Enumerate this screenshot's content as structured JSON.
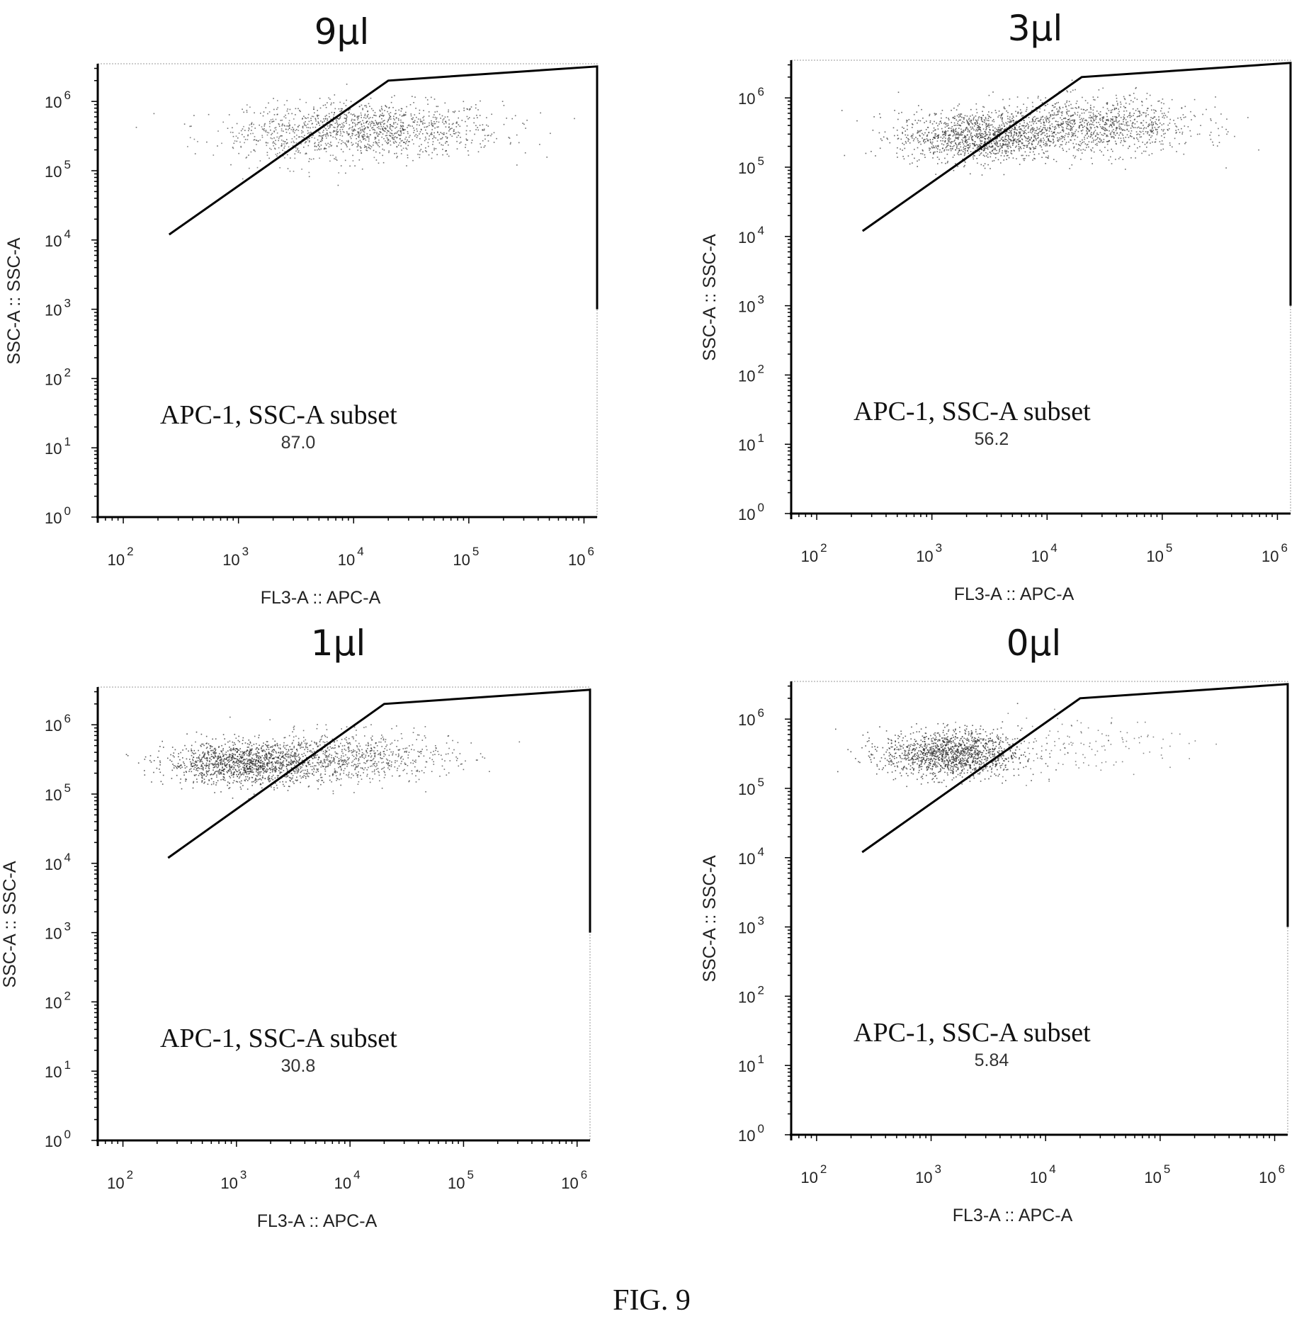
{
  "figure_label": "FIG. 9",
  "chart_data": [
    {
      "type": "scatter",
      "title": "9µl",
      "xlabel": "FL3-A :: APC-A",
      "ylabel": "SSC-A :: SSC-A",
      "x_scale": "log",
      "y_scale": "log",
      "xlim": [
        60,
        1300000
      ],
      "ylim": [
        1,
        3500000
      ],
      "x_tick_values": [
        100,
        1000,
        10000,
        100000,
        1000000
      ],
      "x_tick_labels": [
        [
          "10",
          "2"
        ],
        [
          "10",
          "3"
        ],
        [
          "10",
          "4"
        ],
        [
          "10",
          "5"
        ],
        [
          "10",
          "6"
        ]
      ],
      "y_tick_values": [
        1,
        10,
        100,
        1000,
        10000,
        100000,
        1000000
      ],
      "y_tick_labels": [
        [
          "10",
          "0"
        ],
        [
          "10",
          "1"
        ],
        [
          "10",
          "2"
        ],
        [
          "10",
          "3"
        ],
        [
          "10",
          "4"
        ],
        [
          "10",
          "5"
        ],
        [
          "10",
          "6"
        ]
      ],
      "gate": {
        "name": "APC-1, SSC-A subset",
        "value": "87.0",
        "vertices": [
          [
            250,
            12000
          ],
          [
            20000,
            2000000
          ],
          [
            1300000,
            3200000
          ],
          [
            1300000,
            1000
          ]
        ]
      },
      "clusters": [
        {
          "center": [
            15000,
            400000
          ],
          "spread": [
            0.55,
            0.2
          ],
          "count": 1100,
          "opacity": 0.7
        },
        {
          "center": [
            3000,
            300000
          ],
          "spread": [
            0.35,
            0.2
          ],
          "count": 250,
          "opacity": 0.6
        }
      ]
    },
    {
      "type": "scatter",
      "title": "3µl",
      "xlabel": "FL3-A :: APC-A",
      "ylabel": "SSC-A :: SSC-A",
      "x_scale": "log",
      "y_scale": "log",
      "xlim": [
        60,
        1300000
      ],
      "ylim": [
        1,
        3500000
      ],
      "x_tick_values": [
        100,
        1000,
        10000,
        100000,
        1000000
      ],
      "x_tick_labels": [
        [
          "10",
          "2"
        ],
        [
          "10",
          "3"
        ],
        [
          "10",
          "4"
        ],
        [
          "10",
          "5"
        ],
        [
          "10",
          "6"
        ]
      ],
      "y_tick_values": [
        1,
        10,
        100,
        1000,
        10000,
        100000,
        1000000
      ],
      "y_tick_labels": [
        [
          "10",
          "0"
        ],
        [
          "10",
          "1"
        ],
        [
          "10",
          "2"
        ],
        [
          "10",
          "3"
        ],
        [
          "10",
          "4"
        ],
        [
          "10",
          "5"
        ],
        [
          "10",
          "6"
        ]
      ],
      "gate": {
        "name": "APC-1, SSC-A subset",
        "value": "56.2",
        "vertices": [
          [
            250,
            12000
          ],
          [
            20000,
            2000000
          ],
          [
            1300000,
            3200000
          ],
          [
            1300000,
            1000
          ]
        ]
      },
      "clusters": [
        {
          "center": [
            2500,
            280000
          ],
          "spread": [
            0.35,
            0.18
          ],
          "count": 1200,
          "opacity": 0.75
        },
        {
          "center": [
            25000,
            400000
          ],
          "spread": [
            0.45,
            0.2
          ],
          "count": 1100,
          "opacity": 0.7
        }
      ]
    },
    {
      "type": "scatter",
      "title": "1µl",
      "xlabel": "FL3-A :: APC-A",
      "ylabel": "SSC-A :: SSC-A",
      "x_scale": "log",
      "y_scale": "log",
      "xlim": [
        60,
        1300000
      ],
      "ylim": [
        1,
        3500000
      ],
      "x_tick_values": [
        100,
        1000,
        10000,
        100000,
        1000000
      ],
      "x_tick_labels": [
        [
          "10",
          "2"
        ],
        [
          "10",
          "3"
        ],
        [
          "10",
          "4"
        ],
        [
          "10",
          "5"
        ],
        [
          "10",
          "6"
        ]
      ],
      "y_tick_values": [
        1,
        10,
        100,
        1000,
        10000,
        100000,
        1000000
      ],
      "y_tick_labels": [
        [
          "10",
          "0"
        ],
        [
          "10",
          "1"
        ],
        [
          "10",
          "2"
        ],
        [
          "10",
          "3"
        ],
        [
          "10",
          "4"
        ],
        [
          "10",
          "5"
        ],
        [
          "10",
          "6"
        ]
      ],
      "gate": {
        "name": "APC-1, SSC-A subset",
        "value": "30.8",
        "vertices": [
          [
            250,
            12000
          ],
          [
            20000,
            2000000
          ],
          [
            1300000,
            3200000
          ],
          [
            1300000,
            1000
          ]
        ]
      },
      "clusters": [
        {
          "center": [
            1200,
            280000
          ],
          "spread": [
            0.35,
            0.15
          ],
          "count": 1300,
          "opacity": 0.8
        },
        {
          "center": [
            10000,
            350000
          ],
          "spread": [
            0.45,
            0.18
          ],
          "count": 750,
          "opacity": 0.7
        }
      ]
    },
    {
      "type": "scatter",
      "title": "0µl",
      "xlabel": "FL3-A :: APC-A",
      "ylabel": "SSC-A :: SSC-A",
      "x_scale": "log",
      "y_scale": "log",
      "xlim": [
        60,
        1300000
      ],
      "ylim": [
        1,
        3500000
      ],
      "x_tick_values": [
        100,
        1000,
        10000,
        100000,
        1000000
      ],
      "x_tick_labels": [
        [
          "10",
          "2"
        ],
        [
          "10",
          "3"
        ],
        [
          "10",
          "4"
        ],
        [
          "10",
          "5"
        ],
        [
          "10",
          "6"
        ]
      ],
      "y_tick_values": [
        1,
        10,
        100,
        1000,
        10000,
        100000,
        1000000
      ],
      "y_tick_labels": [
        [
          "10",
          "0"
        ],
        [
          "10",
          "1"
        ],
        [
          "10",
          "2"
        ],
        [
          "10",
          "3"
        ],
        [
          "10",
          "4"
        ],
        [
          "10",
          "5"
        ],
        [
          "10",
          "6"
        ]
      ],
      "gate": {
        "name": "APC-1, SSC-A subset",
        "value": "5.84",
        "vertices": [
          [
            250,
            12000
          ],
          [
            20000,
            2000000
          ],
          [
            1300000,
            3200000
          ],
          [
            1300000,
            1000
          ]
        ]
      },
      "clusters": [
        {
          "center": [
            1500,
            320000
          ],
          "spread": [
            0.3,
            0.17
          ],
          "count": 1400,
          "opacity": 0.8
        },
        {
          "center": [
            20000,
            450000
          ],
          "spread": [
            0.45,
            0.2
          ],
          "count": 130,
          "opacity": 0.6
        }
      ]
    }
  ]
}
